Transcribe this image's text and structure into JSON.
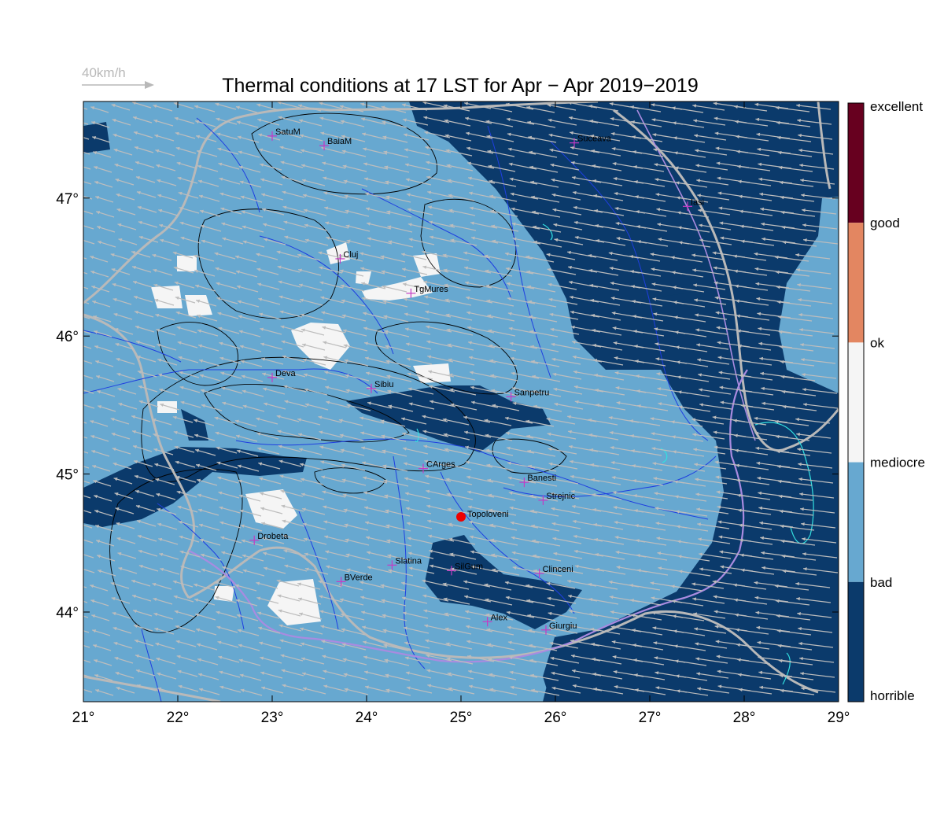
{
  "title": "Thermal conditions at 17 LST for Apr − Apr  2019−2019",
  "wind_scale": {
    "label": "40km/h"
  },
  "colors": {
    "horrible": "#0b3a6b",
    "bad": "#67a8d0",
    "mediocre": "#f5f5f5",
    "ok": "#f5f5f5",
    "good": "#e38661",
    "excellent": "#67001f",
    "wind_arrow": "#bdbdbd",
    "border": "#b9b9b9",
    "river": "#1f3fe0",
    "danube": "#a98be0",
    "contour": "#000000",
    "lake": "#33e0e0",
    "city_marker": "#c43bc4",
    "highlight_marker": "#ee0000"
  },
  "map": {
    "lon_range": [
      21,
      29
    ],
    "lat_range": [
      43.35,
      47.7
    ],
    "x_ticks": [
      "21°",
      "22°",
      "23°",
      "24°",
      "25°",
      "26°",
      "27°",
      "28°",
      "29°"
    ],
    "x_tick_values": [
      21,
      22,
      23,
      24,
      25,
      26,
      27,
      28,
      29
    ],
    "y_ticks": [
      "44°",
      "45°",
      "46°",
      "47°"
    ],
    "y_tick_values": [
      44,
      45,
      46,
      47
    ],
    "wind_direction": "from east toward west-northwest"
  },
  "colorbar": {
    "labels": [
      "excellent",
      "good",
      "ok",
      "mediocre",
      "bad",
      "horrible"
    ]
  },
  "cities": [
    {
      "name": "SatuM",
      "lon": 23.0,
      "lat": 47.45
    },
    {
      "name": "BaiaM",
      "lon": 23.55,
      "lat": 47.38
    },
    {
      "name": "Suceava",
      "lon": 26.2,
      "lat": 47.4
    },
    {
      "name": "Iasi",
      "lon": 27.4,
      "lat": 46.94
    },
    {
      "name": "Cluj",
      "lon": 23.72,
      "lat": 46.56
    },
    {
      "name": "TgMures",
      "lon": 24.47,
      "lat": 46.31
    },
    {
      "name": "Deva",
      "lon": 23.0,
      "lat": 45.7
    },
    {
      "name": "Sibiu",
      "lon": 24.05,
      "lat": 45.62
    },
    {
      "name": "Sanpetru",
      "lon": 25.53,
      "lat": 45.56
    },
    {
      "name": "CArges",
      "lon": 24.6,
      "lat": 45.04
    },
    {
      "name": "Banesti",
      "lon": 25.67,
      "lat": 44.94
    },
    {
      "name": "Strejnic",
      "lon": 25.87,
      "lat": 44.81
    },
    {
      "name": "Drobeta",
      "lon": 22.81,
      "lat": 44.52
    },
    {
      "name": "Slatina",
      "lon": 24.27,
      "lat": 44.34
    },
    {
      "name": "SilGum",
      "lon": 24.9,
      "lat": 44.3
    },
    {
      "name": "Clinceni",
      "lon": 25.83,
      "lat": 44.28
    },
    {
      "name": "BVerde",
      "lon": 23.73,
      "lat": 44.22
    },
    {
      "name": "Alex",
      "lon": 25.28,
      "lat": 43.93
    },
    {
      "name": "Giurgiu",
      "lon": 25.9,
      "lat": 43.87
    }
  ],
  "highlight_city": {
    "name": "Topoloveni",
    "lon": 25.0,
    "lat": 44.69
  }
}
